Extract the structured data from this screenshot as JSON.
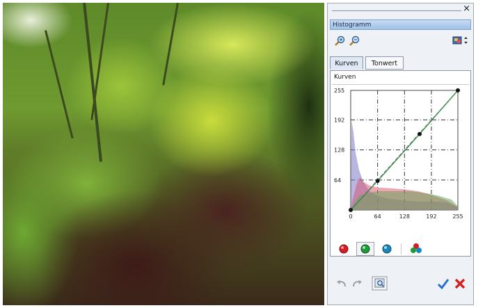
{
  "window": {
    "close_glyph": "×"
  },
  "panel": {
    "title": "Histogramm"
  },
  "toolbar": {
    "zoom_in_icon": "zoom-in-icon",
    "zoom_out_icon": "zoom-out-icon",
    "display_icon": "display-options-icon"
  },
  "tabs": [
    {
      "label": "Kurven",
      "active": true
    },
    {
      "label": "Tonwert",
      "active": false
    }
  ],
  "curves": {
    "label": "Kurven",
    "y_ticks": [
      "255",
      "192",
      "128",
      "64"
    ],
    "x_ticks": [
      "0",
      "64",
      "128",
      "192",
      "255"
    ],
    "points": [
      [
        0,
        0
      ],
      [
        64,
        62
      ],
      [
        164,
        162
      ],
      [
        255,
        255
      ]
    ],
    "histogram": {
      "blue": [
        [
          0,
          0
        ],
        [
          2,
          190
        ],
        [
          6,
          170
        ],
        [
          12,
          120
        ],
        [
          20,
          85
        ],
        [
          30,
          60
        ],
        [
          45,
          40
        ],
        [
          64,
          30
        ],
        [
          90,
          24
        ],
        [
          128,
          20
        ],
        [
          160,
          18
        ],
        [
          192,
          18
        ],
        [
          230,
          16
        ],
        [
          255,
          6
        ]
      ],
      "red": [
        [
          0,
          0
        ],
        [
          4,
          20
        ],
        [
          14,
          55
        ],
        [
          22,
          70
        ],
        [
          30,
          60
        ],
        [
          45,
          52
        ],
        [
          64,
          48
        ],
        [
          100,
          46
        ],
        [
          128,
          44
        ],
        [
          160,
          40
        ],
        [
          192,
          32
        ],
        [
          230,
          20
        ],
        [
          255,
          6
        ]
      ],
      "green": [
        [
          0,
          0
        ],
        [
          6,
          12
        ],
        [
          20,
          30
        ],
        [
          40,
          36
        ],
        [
          64,
          40
        ],
        [
          100,
          40
        ],
        [
          140,
          40
        ],
        [
          180,
          36
        ],
        [
          210,
          30
        ],
        [
          240,
          22
        ],
        [
          255,
          8
        ]
      ]
    },
    "colors": {
      "blue": "#7d7ac8",
      "red": "#d85068",
      "green": "#6aa05a",
      "curve": "#3a8a4a"
    }
  },
  "channels": [
    {
      "name": "red",
      "color": "#d21e24"
    },
    {
      "name": "green",
      "color": "#1f9a3a"
    },
    {
      "name": "blue",
      "color": "#1b86b8"
    },
    {
      "name": "rgb",
      "color": "#888888"
    }
  ],
  "footer": {
    "apply_color": "#2a6fd0",
    "cancel_color": "#d42020"
  }
}
